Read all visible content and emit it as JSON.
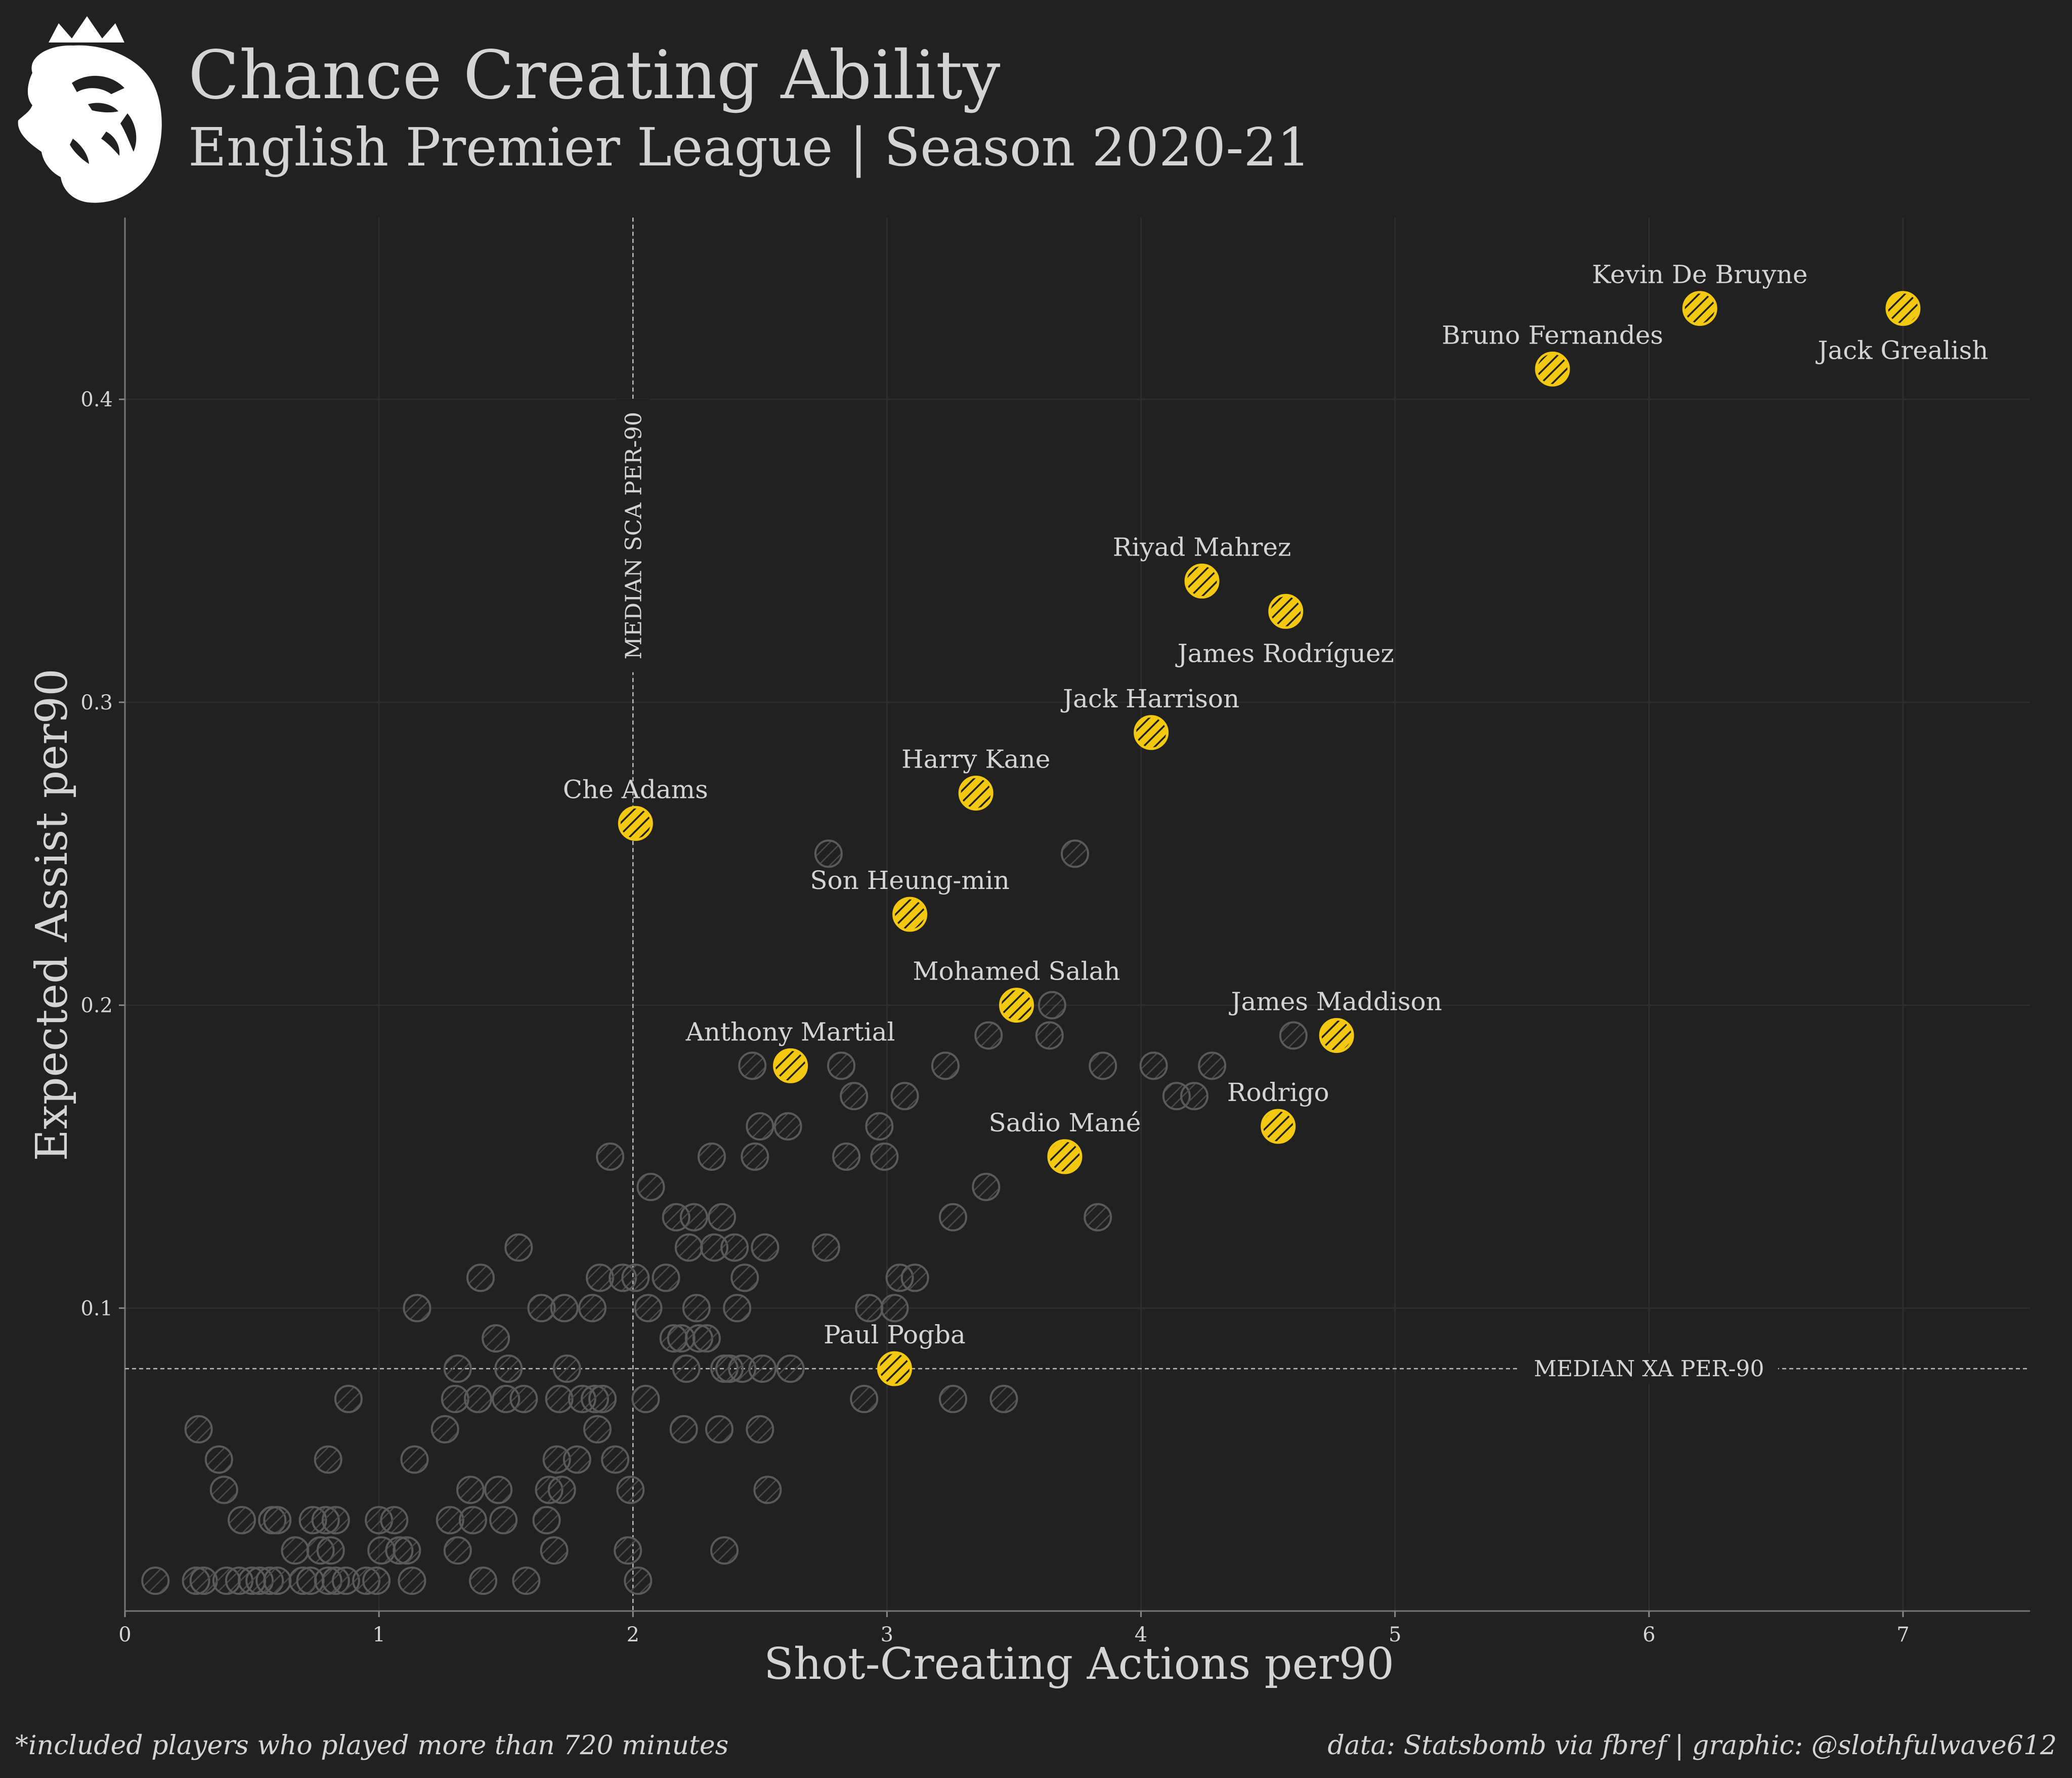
{
  "header": {
    "title": "Chance Creating Ability",
    "subtitle": "English Premier League | Season 2020-21",
    "logo_icon": "premier-league-lion-icon"
  },
  "footer": {
    "note": "*included players who played more than 720 minutes",
    "credit": "data: Statsbomb via fbref | graphic: @slothfulwave612"
  },
  "colors": {
    "background": "#212121",
    "text": "#d4d4d4",
    "highlight": "#f2c811",
    "others": "#5a5a5a"
  },
  "chart_data": {
    "type": "scatter",
    "xlabel": "Shot-Creating Actions per90",
    "ylabel": "Expected Assist per90",
    "xlim": [
      0,
      7.5
    ],
    "ylim": [
      0,
      0.46
    ],
    "xticks": [
      "0",
      "1",
      "2",
      "3",
      "4",
      "5",
      "6",
      "7"
    ],
    "yticks": [
      "0.1",
      "0.2",
      "0.3",
      "0.4"
    ],
    "grid": true,
    "median_lines": {
      "x": 2.0,
      "x_label": "MEDIAN SCA PER-90",
      "y": 0.08,
      "y_label": "MEDIAN XA PER-90"
    },
    "highlighted": [
      {
        "name": "Kevin De Bruyne",
        "x": 6.2,
        "y": 0.43,
        "label_pos": "above"
      },
      {
        "name": "Jack Grealish",
        "x": 7.0,
        "y": 0.43,
        "label_pos": "below"
      },
      {
        "name": "Bruno Fernandes",
        "x": 5.62,
        "y": 0.41,
        "label_pos": "above"
      },
      {
        "name": "Riyad Mahrez",
        "x": 4.24,
        "y": 0.34,
        "label_pos": "above"
      },
      {
        "name": "James Rodríguez",
        "x": 4.57,
        "y": 0.33,
        "label_pos": "below"
      },
      {
        "name": "Jack Harrison",
        "x": 4.04,
        "y": 0.29,
        "label_pos": "above"
      },
      {
        "name": "Harry Kane",
        "x": 3.35,
        "y": 0.27,
        "label_pos": "above"
      },
      {
        "name": "Che Adams",
        "x": 2.01,
        "y": 0.26,
        "label_pos": "above"
      },
      {
        "name": "Son Heung-min",
        "x": 3.09,
        "y": 0.23,
        "label_pos": "above"
      },
      {
        "name": "Mohamed Salah",
        "x": 3.51,
        "y": 0.2,
        "label_pos": "above"
      },
      {
        "name": "James Maddison",
        "x": 4.77,
        "y": 0.19,
        "label_pos": "above"
      },
      {
        "name": "Anthony Martial",
        "x": 2.62,
        "y": 0.18,
        "label_pos": "above"
      },
      {
        "name": "Rodrigo",
        "x": 4.54,
        "y": 0.16,
        "label_pos": "above"
      },
      {
        "name": "Sadio Mané",
        "x": 3.7,
        "y": 0.15,
        "label_pos": "above"
      },
      {
        "name": "Paul Pogba",
        "x": 3.03,
        "y": 0.08,
        "label_pos": "above"
      }
    ],
    "others": [
      [
        0.12,
        0.01
      ],
      [
        0.28,
        0.01
      ],
      [
        0.31,
        0.01
      ],
      [
        0.4,
        0.01
      ],
      [
        0.45,
        0.01
      ],
      [
        0.5,
        0.01
      ],
      [
        0.53,
        0.01
      ],
      [
        0.57,
        0.01
      ],
      [
        0.6,
        0.01
      ],
      [
        0.7,
        0.01
      ],
      [
        0.73,
        0.01
      ],
      [
        0.8,
        0.01
      ],
      [
        0.83,
        0.01
      ],
      [
        0.87,
        0.01
      ],
      [
        0.95,
        0.01
      ],
      [
        0.99,
        0.01
      ],
      [
        1.13,
        0.01
      ],
      [
        1.41,
        0.01
      ],
      [
        1.58,
        0.01
      ],
      [
        2.02,
        0.01
      ],
      [
        0.29,
        0.06
      ],
      [
        0.37,
        0.05
      ],
      [
        0.39,
        0.04
      ],
      [
        0.46,
        0.03
      ],
      [
        0.58,
        0.03
      ],
      [
        0.6,
        0.03
      ],
      [
        0.67,
        0.02
      ],
      [
        0.74,
        0.03
      ],
      [
        0.77,
        0.02
      ],
      [
        0.79,
        0.03
      ],
      [
        0.81,
        0.02
      ],
      [
        0.83,
        0.03
      ],
      [
        0.8,
        0.05
      ],
      [
        0.88,
        0.07
      ],
      [
        1.0,
        0.03
      ],
      [
        1.01,
        0.02
      ],
      [
        1.06,
        0.03
      ],
      [
        1.08,
        0.02
      ],
      [
        1.11,
        0.02
      ],
      [
        1.14,
        0.05
      ],
      [
        1.15,
        0.1
      ],
      [
        1.26,
        0.06
      ],
      [
        1.28,
        0.03
      ],
      [
        1.3,
        0.07
      ],
      [
        1.31,
        0.08
      ],
      [
        1.31,
        0.02
      ],
      [
        1.36,
        0.04
      ],
      [
        1.37,
        0.03
      ],
      [
        1.39,
        0.07
      ],
      [
        1.4,
        0.11
      ],
      [
        1.46,
        0.09
      ],
      [
        1.47,
        0.04
      ],
      [
        1.49,
        0.03
      ],
      [
        1.5,
        0.07
      ],
      [
        1.51,
        0.08
      ],
      [
        1.55,
        0.12
      ],
      [
        1.57,
        0.07
      ],
      [
        1.64,
        0.1
      ],
      [
        1.66,
        0.03
      ],
      [
        1.67,
        0.04
      ],
      [
        1.69,
        0.02
      ],
      [
        1.7,
        0.05
      ],
      [
        1.71,
        0.07
      ],
      [
        1.72,
        0.04
      ],
      [
        1.73,
        0.1
      ],
      [
        1.74,
        0.08
      ],
      [
        1.78,
        0.05
      ],
      [
        1.8,
        0.07
      ],
      [
        1.84,
        0.1
      ],
      [
        1.85,
        0.07
      ],
      [
        1.86,
        0.06
      ],
      [
        1.87,
        0.11
      ],
      [
        1.88,
        0.07
      ],
      [
        1.91,
        0.15
      ],
      [
        1.93,
        0.05
      ],
      [
        1.96,
        0.11
      ],
      [
        1.98,
        0.02
      ],
      [
        1.99,
        0.04
      ],
      [
        2.01,
        0.11
      ],
      [
        2.05,
        0.07
      ],
      [
        2.06,
        0.1
      ],
      [
        2.07,
        0.14
      ],
      [
        2.13,
        0.11
      ],
      [
        2.16,
        0.09
      ],
      [
        2.17,
        0.13
      ],
      [
        2.19,
        0.09
      ],
      [
        2.2,
        0.06
      ],
      [
        2.21,
        0.08
      ],
      [
        2.22,
        0.12
      ],
      [
        2.24,
        0.13
      ],
      [
        2.25,
        0.1
      ],
      [
        2.26,
        0.09
      ],
      [
        2.29,
        0.09
      ],
      [
        2.31,
        0.15
      ],
      [
        2.32,
        0.12
      ],
      [
        2.34,
        0.06
      ],
      [
        2.35,
        0.13
      ],
      [
        2.36,
        0.08
      ],
      [
        2.38,
        0.08
      ],
      [
        2.36,
        0.02
      ],
      [
        2.4,
        0.12
      ],
      [
        2.41,
        0.1
      ],
      [
        2.43,
        0.08
      ],
      [
        2.44,
        0.11
      ],
      [
        2.47,
        0.18
      ],
      [
        2.48,
        0.15
      ],
      [
        2.5,
        0.16
      ],
      [
        2.51,
        0.08
      ],
      [
        2.5,
        0.06
      ],
      [
        2.52,
        0.12
      ],
      [
        2.53,
        0.04
      ],
      [
        2.61,
        0.16
      ],
      [
        2.62,
        0.08
      ],
      [
        2.76,
        0.12
      ],
      [
        2.77,
        0.25
      ],
      [
        2.82,
        0.18
      ],
      [
        2.84,
        0.15
      ],
      [
        2.87,
        0.17
      ],
      [
        2.91,
        0.07
      ],
      [
        2.93,
        0.1
      ],
      [
        2.97,
        0.16
      ],
      [
        2.99,
        0.15
      ],
      [
        3.03,
        0.1
      ],
      [
        3.05,
        0.11
      ],
      [
        3.07,
        0.17
      ],
      [
        3.11,
        0.11
      ],
      [
        3.23,
        0.18
      ],
      [
        3.26,
        0.13
      ],
      [
        3.26,
        0.07
      ],
      [
        3.39,
        0.14
      ],
      [
        3.4,
        0.19
      ],
      [
        3.46,
        0.07
      ],
      [
        3.64,
        0.19
      ],
      [
        3.65,
        0.2
      ],
      [
        3.74,
        0.25
      ],
      [
        3.83,
        0.13
      ],
      [
        3.85,
        0.18
      ],
      [
        4.05,
        0.18
      ],
      [
        4.14,
        0.17
      ],
      [
        4.21,
        0.17
      ],
      [
        4.28,
        0.18
      ],
      [
        4.6,
        0.19
      ]
    ]
  }
}
